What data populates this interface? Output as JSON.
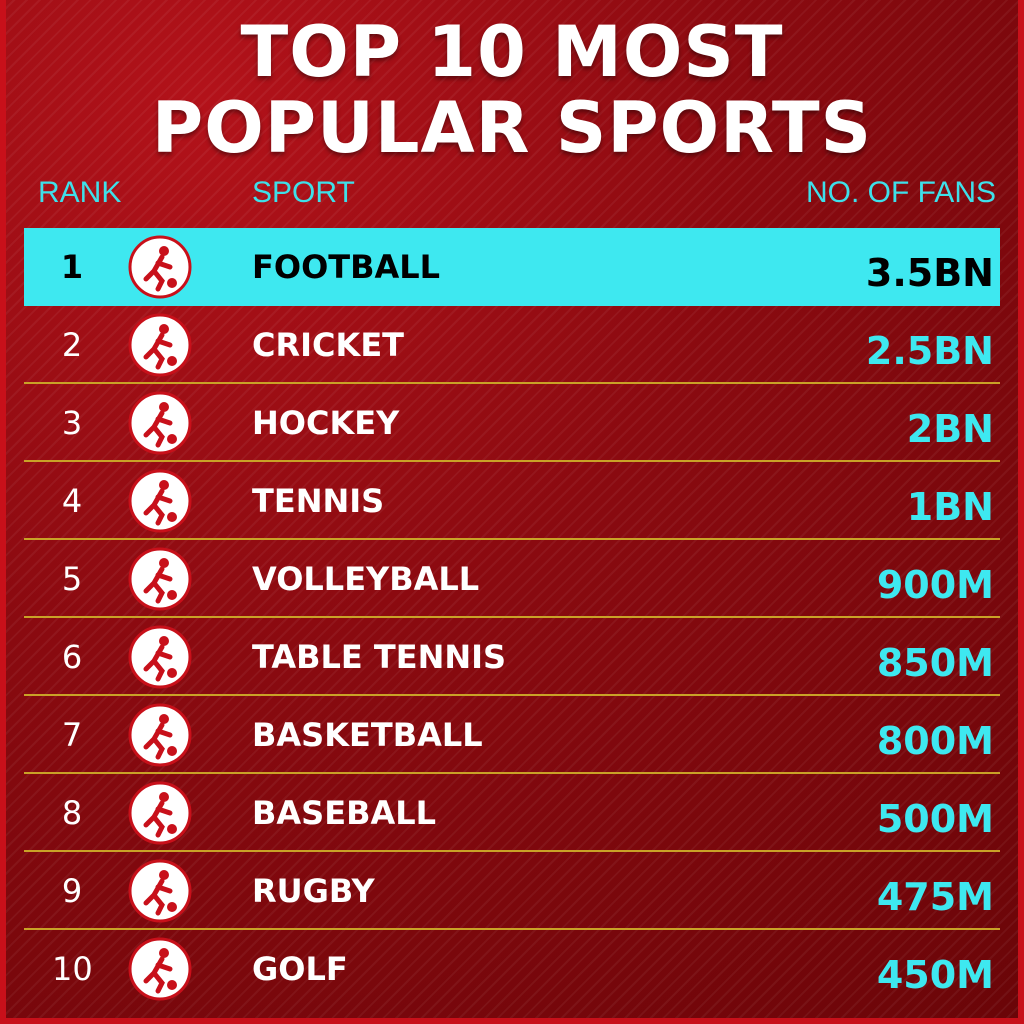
{
  "title": "TOP 10 MOST POPULAR SPORTS",
  "headers": {
    "rank": "RANK",
    "sport": "SPORT",
    "fans": "NO. OF FANS"
  },
  "rows": [
    {
      "rank": 1,
      "sport": "FOOTBALL",
      "fans": "3.5BN"
    },
    {
      "rank": 2,
      "sport": "CRICKET",
      "fans": "2.5BN"
    },
    {
      "rank": 3,
      "sport": "HOCKEY",
      "fans": "2BN"
    },
    {
      "rank": 4,
      "sport": "TENNIS",
      "fans": "1BN"
    },
    {
      "rank": 5,
      "sport": "VOLLEYBALL",
      "fans": "900M"
    },
    {
      "rank": 6,
      "sport": "TABLE TENNIS",
      "fans": "850M"
    },
    {
      "rank": 7,
      "sport": "BASKETBALL",
      "fans": "800M"
    },
    {
      "rank": 8,
      "sport": "BASEBALL",
      "fans": "500M"
    },
    {
      "rank": 9,
      "sport": "RUGBY",
      "fans": "475M"
    },
    {
      "rank": 10,
      "sport": "GOLF",
      "fans": "450M"
    }
  ]
}
